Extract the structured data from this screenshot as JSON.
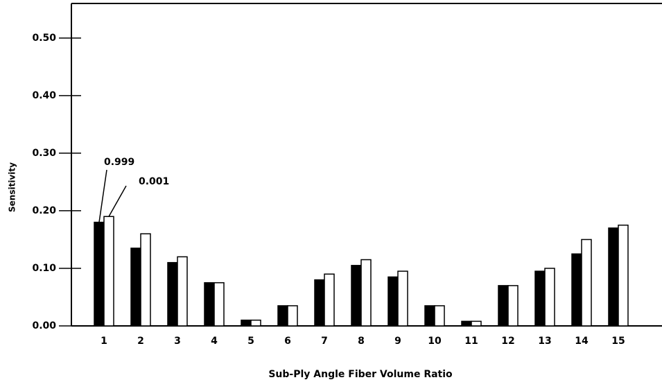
{
  "chart_data": {
    "type": "bar",
    "xlabel": "Sub-Ply Angle Fiber Volume Ratio",
    "ylabel": "Sensitivity",
    "categories": [
      "1",
      "2",
      "3",
      "4",
      "5",
      "6",
      "7",
      "8",
      "9",
      "10",
      "11",
      "12",
      "13",
      "14",
      "15"
    ],
    "series": [
      {
        "name": "0.999",
        "color": "#000000",
        "values": [
          0.18,
          0.135,
          0.11,
          0.075,
          0.01,
          0.035,
          0.08,
          0.105,
          0.085,
          0.035,
          0.008,
          0.07,
          0.095,
          0.125,
          0.17
        ]
      },
      {
        "name": "0.001",
        "color": "#ffffff",
        "values": [
          0.19,
          0.16,
          0.12,
          0.075,
          0.01,
          0.035,
          0.09,
          0.115,
          0.095,
          0.035,
          0.008,
          0.07,
          0.1,
          0.15,
          0.175
        ]
      }
    ],
    "ylim": [
      0,
      0.56
    ],
    "yticks": [
      {
        "value": 0,
        "label": "0.00"
      },
      {
        "value": 0.1,
        "label": "0.10"
      },
      {
        "value": 0.2,
        "label": "0.20"
      },
      {
        "value": 0.3,
        "label": "0.30"
      },
      {
        "value": 0.4,
        "label": "0.40"
      },
      {
        "value": 0.5,
        "label": "0.50"
      }
    ]
  }
}
